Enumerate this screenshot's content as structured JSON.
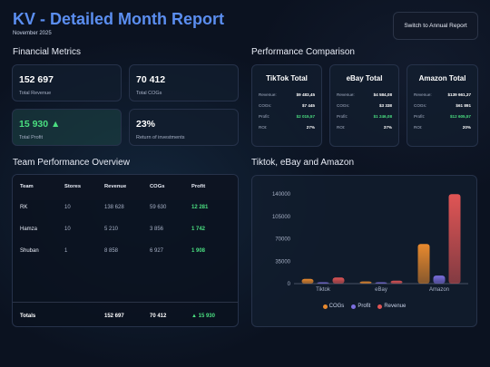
{
  "header": {
    "title": "KV - Detailed Month Report",
    "subtitle": "November 2025",
    "switch_button": "Switch to Annual Report"
  },
  "sections": {
    "financial": "Financial Metrics",
    "performance": "Performance Comparison",
    "team": "Team Performance Overview",
    "chart": "Tiktok, eBay and Amazon"
  },
  "metrics": [
    {
      "value": "152 697",
      "label": "Total Revenue"
    },
    {
      "value": "70 412",
      "label": "Total COGs"
    },
    {
      "value": "15 930 ▲",
      "label": "Total Profit"
    },
    {
      "value": "23%",
      "label": "Return of investments"
    }
  ],
  "performance": [
    {
      "title": "TikTok Total",
      "rows": [
        {
          "label": "Revenue:",
          "value": "$9 483,45"
        },
        {
          "label": "COGs:",
          "value": "$7 445"
        },
        {
          "label": "Profit:",
          "value": "$2 015,57"
        },
        {
          "label": "ROI:",
          "value": "27%"
        }
      ]
    },
    {
      "title": "eBay Total",
      "rows": [
        {
          "label": "Revenue:",
          "value": "$4 584,08"
        },
        {
          "label": "COGs:",
          "value": "$3 338"
        },
        {
          "label": "Profit:",
          "value": "$1 246,08"
        },
        {
          "label": "ROI:",
          "value": "37%"
        }
      ]
    },
    {
      "title": "Amazon Total",
      "rows": [
        {
          "label": "Revenue:",
          "value": "$139 661,37"
        },
        {
          "label": "COGs:",
          "value": "$61 891"
        },
        {
          "label": "Profit:",
          "value": "$12 605,57"
        },
        {
          "label": "ROI:",
          "value": "20%"
        }
      ]
    }
  ],
  "team": {
    "columns": [
      "Team",
      "Stores",
      "Revenue",
      "COGs",
      "Profit"
    ],
    "rows": [
      [
        "RK",
        "10",
        "138 628",
        "59 630",
        "12 281"
      ],
      [
        "Hamza",
        "10",
        "5 210",
        "3 856",
        "1 742"
      ],
      [
        "Shuban",
        "1",
        "8 858",
        "6 927",
        "1 908"
      ]
    ],
    "totals": [
      "Totals",
      "",
      "152 697",
      "70 412",
      "▲ 15 930"
    ]
  },
  "colors": {
    "cogs": "#e88a2e",
    "profit": "#7c6fe0",
    "revenue": "#e05555",
    "accent": "#5b8ef0",
    "positive": "#4ade80"
  },
  "chart_data": {
    "type": "bar",
    "categories": [
      "Tiktok",
      "eBay",
      "Amazon"
    ],
    "series": [
      {
        "name": "COGs",
        "values": [
          7445,
          3338,
          61891
        ]
      },
      {
        "name": "Profit",
        "values": [
          2016,
          1246,
          12606
        ]
      },
      {
        "name": "Revenue",
        "values": [
          9483,
          4584,
          139661
        ]
      }
    ],
    "yticks": [
      0,
      35000,
      70000,
      105000,
      140000
    ],
    "ylim": [
      0,
      140000
    ],
    "legend": "bottom"
  }
}
